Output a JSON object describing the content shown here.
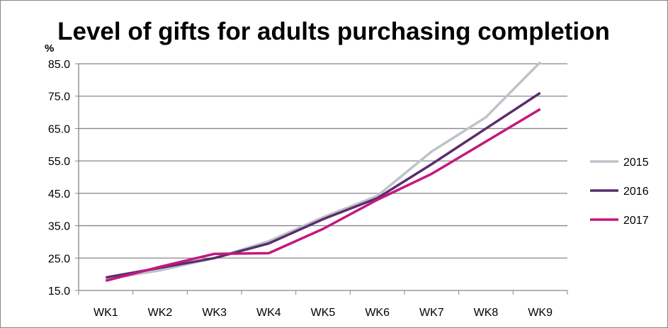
{
  "chart_data": {
    "type": "line",
    "title": "Level of gifts for adults purchasing completion",
    "ylabel": "%",
    "xlabel": "",
    "ylim": [
      15,
      85
    ],
    "yticks": [
      "15.0",
      "25.0",
      "35.0",
      "45.0",
      "55.0",
      "65.0",
      "75.0",
      "85.0"
    ],
    "categories": [
      "WK1",
      "WK2",
      "WK3",
      "WK4",
      "WK5",
      "WK6",
      "WK7",
      "WK8",
      "WK9"
    ],
    "grid": true,
    "legend_position": "right",
    "series": [
      {
        "name": "2015",
        "color": "#bdc3c9",
        "values": [
          18.5,
          21.2,
          25.0,
          30.2,
          37.6,
          44.2,
          57.9,
          68.5,
          85.5
        ]
      },
      {
        "name": "2016",
        "color": "#5a2d6e",
        "values": [
          19.0,
          22.0,
          25.0,
          29.5,
          37.0,
          43.5,
          54.0,
          65.0,
          76.0
        ]
      },
      {
        "name": "2017",
        "color": "#c4177f",
        "values": [
          18.0,
          22.3,
          26.3,
          26.5,
          34.0,
          43.0,
          51.0,
          61.0,
          71.0
        ]
      }
    ]
  }
}
